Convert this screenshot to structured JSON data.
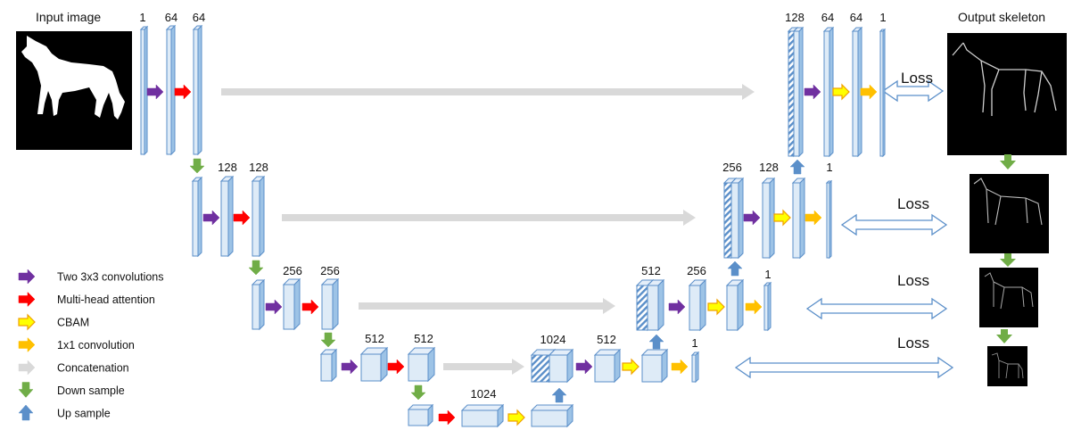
{
  "titles": {
    "input": "Input image",
    "output": "Output skeleton"
  },
  "loss_label": "Loss",
  "channels": {
    "l1": [
      "1",
      "64",
      "64"
    ],
    "l2": [
      "128",
      "128"
    ],
    "l3": [
      "256",
      "256"
    ],
    "l4": [
      "512",
      "512"
    ],
    "bottom": "1024",
    "d4": [
      "1024",
      "512",
      "1"
    ],
    "d3": [
      "512",
      "256",
      "1"
    ],
    "d2": [
      "256",
      "128",
      "1"
    ],
    "d1": [
      "128",
      "64",
      "64",
      "1"
    ]
  },
  "legend": [
    {
      "label": "Two 3x3 convolutions",
      "color": "#7030a0"
    },
    {
      "label": "Multi-head attention",
      "color": "#ff0000"
    },
    {
      "label": "CBAM",
      "color": "#ffff00"
    },
    {
      "label": "1x1 convolution",
      "color": "#ffc000"
    },
    {
      "label": "Concatenation",
      "color": "#d9d9d9"
    },
    {
      "label": "Down sample",
      "color": "#70ad47"
    },
    {
      "label": "Up sample",
      "color": "#5b8fc9"
    }
  ]
}
